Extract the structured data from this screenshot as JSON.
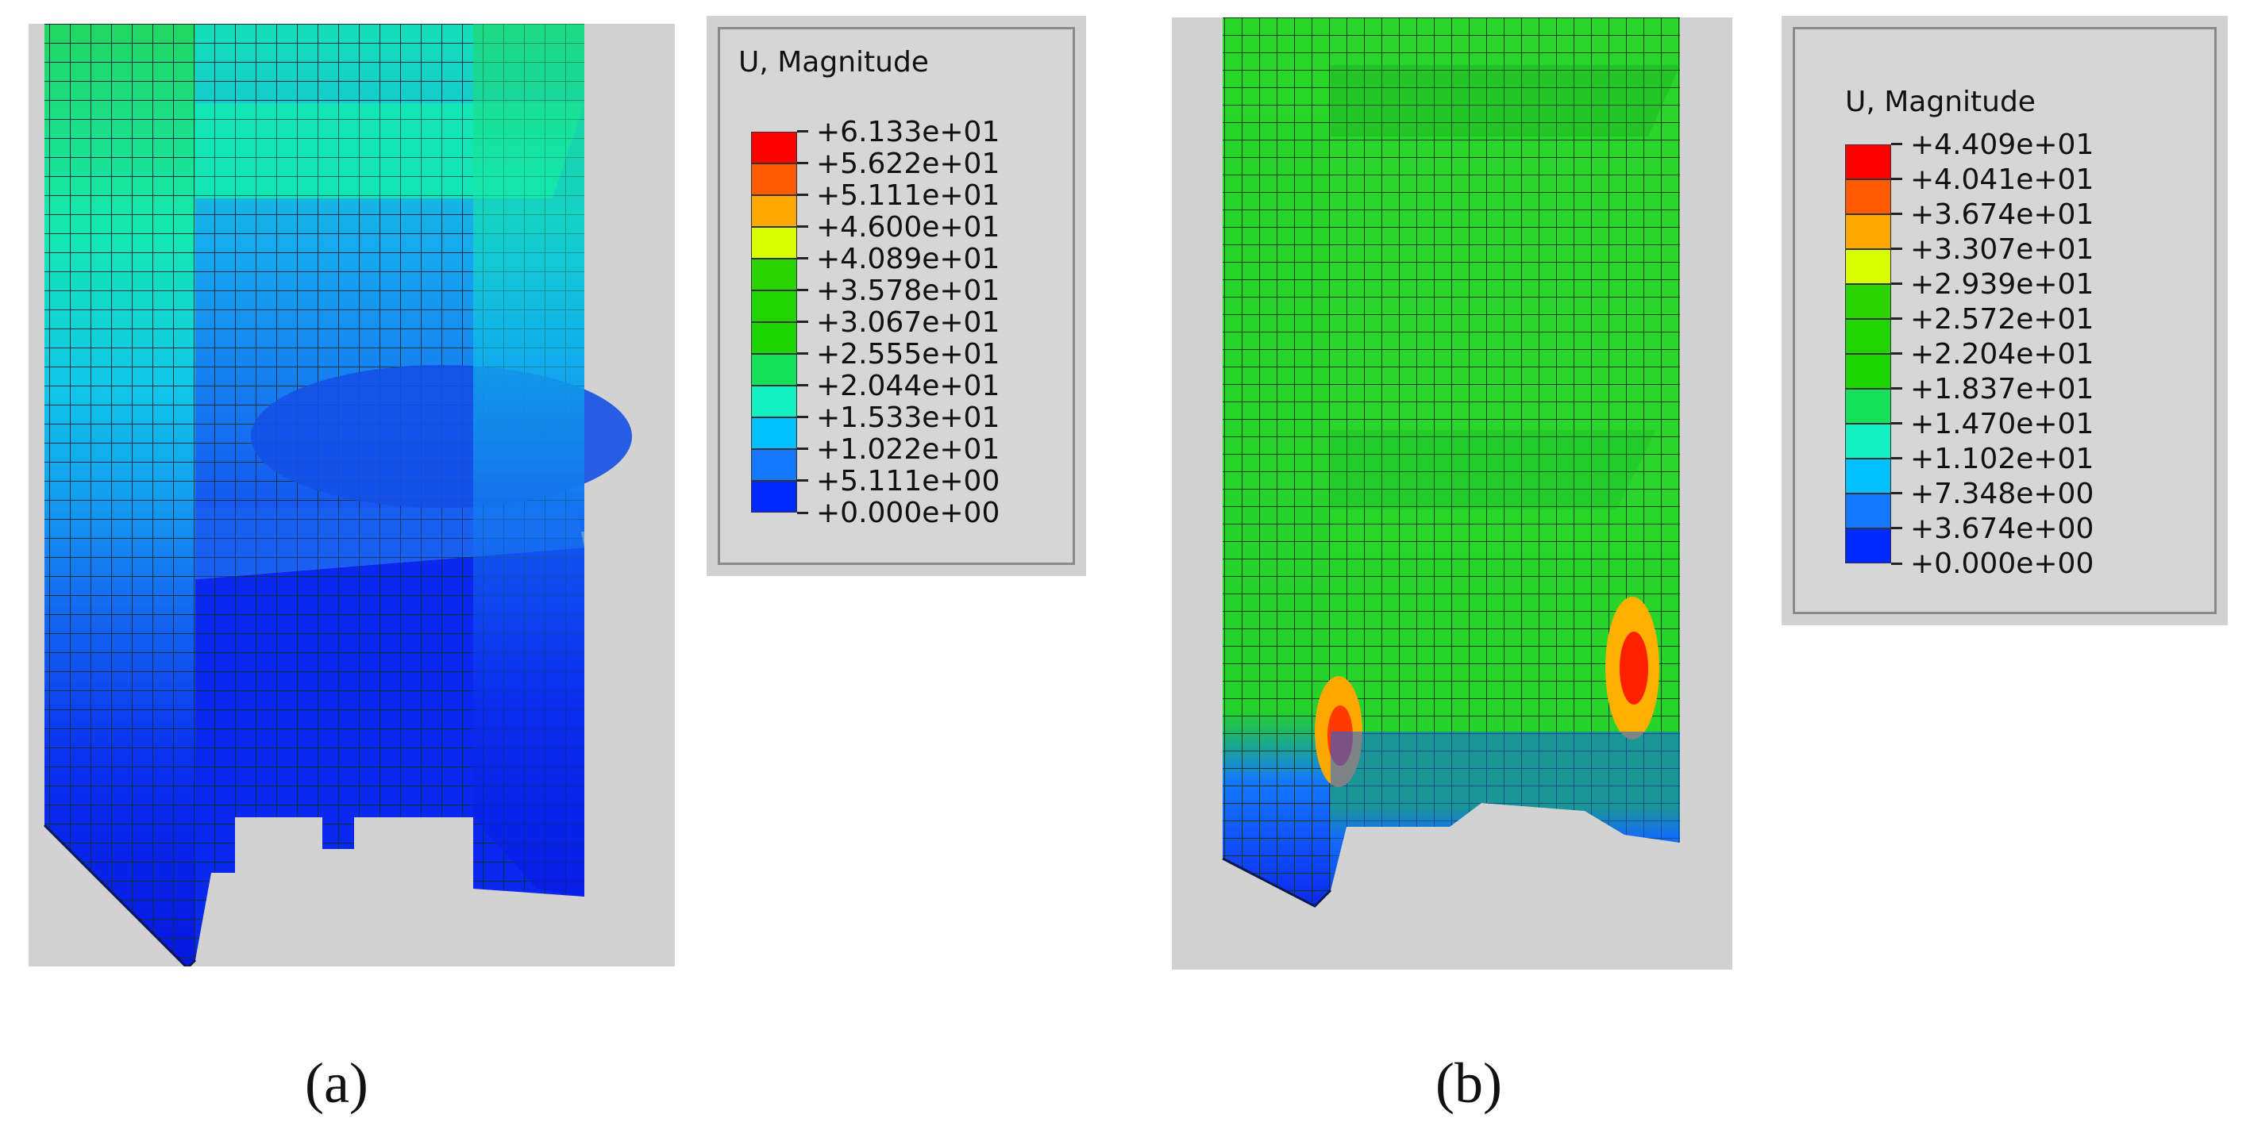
{
  "captions": {
    "a": "(a)",
    "b": "(b)"
  },
  "legend_a": {
    "title": "U, Magnitude",
    "values": [
      "+6.133e+01",
      "+5.622e+01",
      "+5.111e+01",
      "+4.600e+01",
      "+4.089e+01",
      "+3.578e+01",
      "+3.067e+01",
      "+2.555e+01",
      "+2.044e+01",
      "+1.533e+01",
      "+1.022e+01",
      "+5.111e+00",
      "+0.000e+00"
    ],
    "colors": [
      "#ff0000",
      "#ff5a00",
      "#ffa800",
      "#d8ff00",
      "#2ad400",
      "#20d400",
      "#1bd400",
      "#14e05a",
      "#10f0c0",
      "#00c0ff",
      "#1478ff",
      "#0028ff"
    ]
  },
  "legend_b": {
    "title": "U, Magnitude",
    "values": [
      "+4.409e+01",
      "+4.041e+01",
      "+3.674e+01",
      "+3.307e+01",
      "+2.939e+01",
      "+2.572e+01",
      "+2.204e+01",
      "+1.837e+01",
      "+1.470e+01",
      "+1.102e+01",
      "+7.348e+00",
      "+3.674e+00",
      "+0.000e+00"
    ],
    "colors": [
      "#ff0000",
      "#ff5a00",
      "#ffa800",
      "#d8ff00",
      "#2ad400",
      "#20d400",
      "#1bd400",
      "#14e05a",
      "#10f0c0",
      "#00c0ff",
      "#1478ff",
      "#0028ff"
    ]
  }
}
